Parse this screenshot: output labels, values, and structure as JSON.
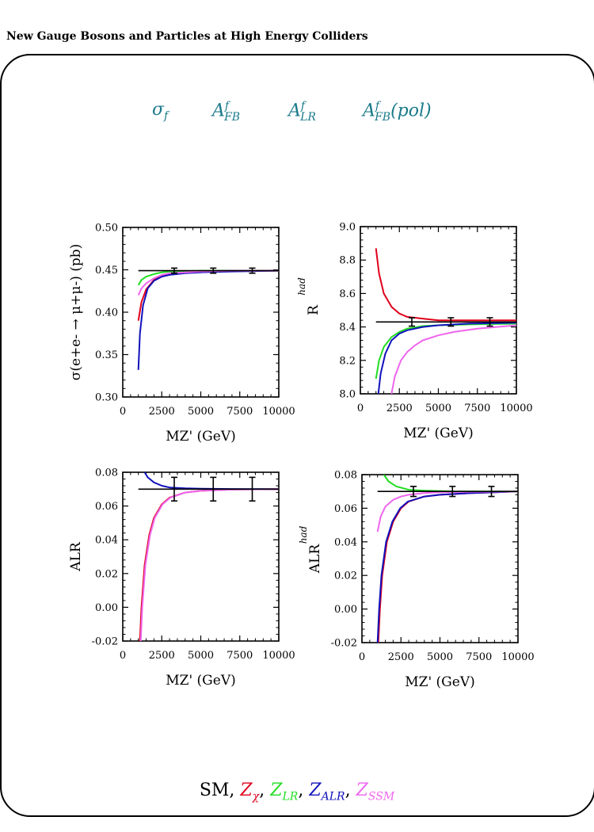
{
  "header": {
    "title": "New Gauge Bosons and Particles at High Energy Colliders"
  },
  "observables": [
    {
      "base": "σ",
      "sub": "f",
      "sup": ""
    },
    {
      "base": "A",
      "sup": "f",
      "sub": "FB"
    },
    {
      "base": "A",
      "sup": "f",
      "sub": "LR"
    },
    {
      "base": "A",
      "sup": "f",
      "sub": "FB",
      "suffix": "(pol)"
    }
  ],
  "legend": {
    "sm": "SM",
    "items": [
      {
        "base": "Z",
        "sub": "χ",
        "color": "#e0001c"
      },
      {
        "base": "Z",
        "sub": "LR",
        "color": "#22dd22"
      },
      {
        "base": "Z",
        "sub": "ALR",
        "color": "#1111bb"
      },
      {
        "base": "Z",
        "sub": "SSM",
        "color": "#ee66ee"
      }
    ]
  },
  "colors": {
    "SM": "#000000",
    "chi": "#e0001c",
    "LR": "#22dd22",
    "ALR": "#1111bb",
    "SSM": "#ee66ee"
  },
  "chart_data": [
    {
      "type": "line",
      "ylabel": "σ(e+e- → μ+μ-)  (pb)",
      "xlabel": "MZ'  (GeV)",
      "xlim": [
        0,
        10000
      ],
      "ylim": [
        0.3,
        0.5
      ],
      "xticks": [
        "0",
        "2500",
        "5000",
        "7500",
        "10000"
      ],
      "yticks": [
        "0.30",
        "0.35",
        "0.40",
        "0.45",
        "0.50"
      ],
      "sm": 0.449,
      "errorbars": [
        {
          "x": 3300,
          "y": 0.449,
          "err": 0.003
        },
        {
          "x": 5800,
          "y": 0.449,
          "err": 0.003
        },
        {
          "x": 8300,
          "y": 0.449,
          "err": 0.003
        }
      ],
      "series": [
        {
          "key": "chi",
          "x": [
            1000,
            1200,
            1500,
            2000,
            2500,
            3000,
            4000,
            5000,
            7000,
            10000
          ],
          "y": [
            0.39,
            0.412,
            0.427,
            0.438,
            0.443,
            0.445,
            0.447,
            0.448,
            0.449,
            0.449
          ]
        },
        {
          "key": "LR",
          "x": [
            1000,
            1200,
            1500,
            2000,
            2500,
            3000,
            4000,
            5000,
            7000,
            10000
          ],
          "y": [
            0.432,
            0.438,
            0.442,
            0.445,
            0.447,
            0.448,
            0.448,
            0.449,
            0.449,
            0.449
          ]
        },
        {
          "key": "ALR",
          "x": [
            1000,
            1100,
            1300,
            1600,
            2000,
            2500,
            3000,
            4000,
            5000,
            7000,
            10000
          ],
          "y": [
            0.332,
            0.375,
            0.408,
            0.428,
            0.437,
            0.442,
            0.444,
            0.446,
            0.447,
            0.448,
            0.449
          ]
        },
        {
          "key": "SSM",
          "x": [
            1000,
            1200,
            1500,
            2000,
            2500,
            3000,
            4000,
            5000,
            7000,
            10000
          ],
          "y": [
            0.42,
            0.428,
            0.434,
            0.44,
            0.444,
            0.446,
            0.447,
            0.448,
            0.449,
            0.449
          ]
        }
      ]
    },
    {
      "type": "line",
      "ylabel": "R",
      "ylabel_sup": "had",
      "xlabel": "MZ'  (GeV)",
      "xlim": [
        0,
        10000
      ],
      "ylim": [
        8.0,
        9.0
      ],
      "xticks": [
        "0",
        "2500",
        "5000",
        "7500",
        "10000"
      ],
      "yticks": [
        "8.0",
        "8.2",
        "8.4",
        "8.6",
        "8.8",
        "9.0"
      ],
      "sm": 8.43,
      "errorbars": [
        {
          "x": 3300,
          "y": 8.43,
          "err": 0.025
        },
        {
          "x": 5800,
          "y": 8.43,
          "err": 0.025
        },
        {
          "x": 8300,
          "y": 8.43,
          "err": 0.025
        }
      ],
      "series": [
        {
          "key": "chi",
          "x": [
            1000,
            1200,
            1500,
            2000,
            2500,
            3000,
            4000,
            5000,
            7000,
            10000
          ],
          "y": [
            8.87,
            8.72,
            8.6,
            8.52,
            8.48,
            8.46,
            8.45,
            8.44,
            8.44,
            8.44
          ]
        },
        {
          "key": "LR",
          "x": [
            1000,
            1200,
            1500,
            2000,
            2500,
            3000,
            4000,
            5000,
            7000,
            10000
          ],
          "y": [
            8.09,
            8.2,
            8.28,
            8.34,
            8.37,
            8.39,
            8.405,
            8.41,
            8.415,
            8.42
          ]
        },
        {
          "key": "ALR",
          "x": [
            1150,
            1300,
            1600,
            2000,
            2500,
            3000,
            4000,
            5000,
            7000,
            10000
          ],
          "y": [
            8.0,
            8.12,
            8.24,
            8.32,
            8.36,
            8.38,
            8.4,
            8.41,
            8.42,
            8.425
          ]
        },
        {
          "key": "SSM",
          "x": [
            2000,
            2200,
            2600,
            3000,
            3500,
            4000,
            5000,
            6000,
            7500,
            10000
          ],
          "y": [
            8.0,
            8.1,
            8.2,
            8.25,
            8.29,
            8.32,
            8.35,
            8.37,
            8.39,
            8.41
          ]
        }
      ]
    },
    {
      "type": "line",
      "ylabel": "ALR",
      "xlabel": "MZ'  (GeV)",
      "xlim": [
        0,
        10000
      ],
      "ylim": [
        -0.02,
        0.08
      ],
      "xticks": [
        "0",
        "2500",
        "5000",
        "7500",
        "10000"
      ],
      "yticks": [
        "-0.02",
        "0.00",
        "0.02",
        "0.04",
        "0.06",
        "0.08"
      ],
      "sm": 0.07,
      "errorbars": [
        {
          "x": 3300,
          "y": 0.07,
          "err": 0.007
        },
        {
          "x": 5800,
          "y": 0.07,
          "err": 0.007
        },
        {
          "x": 8300,
          "y": 0.07,
          "err": 0.007
        }
      ],
      "series": [
        {
          "key": "chi",
          "x": [
            1100,
            1200,
            1400,
            1700,
            2000,
            2500,
            3000,
            4000,
            5000,
            7000,
            10000
          ],
          "y": [
            -0.02,
            0.0,
            0.025,
            0.043,
            0.053,
            0.061,
            0.065,
            0.068,
            0.069,
            0.0698,
            0.07
          ]
        },
        {
          "key": "ALR",
          "x": [
            1400,
            1600,
            2000,
            2500,
            3000,
            4000,
            5000,
            7000,
            10000
          ],
          "y": [
            0.08,
            0.077,
            0.074,
            0.072,
            0.071,
            0.0705,
            0.0703,
            0.0701,
            0.07
          ]
        },
        {
          "key": "SSM",
          "x": [
            1150,
            1250,
            1450,
            1750,
            2050,
            2550,
            3050,
            4000,
            5000,
            7000,
            10000
          ],
          "y": [
            -0.02,
            0.0,
            0.025,
            0.043,
            0.053,
            0.061,
            0.065,
            0.068,
            0.069,
            0.0697,
            0.07
          ]
        }
      ]
    },
    {
      "type": "line",
      "ylabel": "ALR",
      "ylabel_sup": "had",
      "xlabel": "MZ'  (GeV)",
      "xlim": [
        0,
        10000
      ],
      "ylim": [
        -0.02,
        0.08
      ],
      "xticks": [
        "0",
        "2500",
        "5000",
        "7500",
        "10000"
      ],
      "yticks": [
        "-0.02",
        "0.00",
        "0.02",
        "0.04",
        "0.06",
        "0.08"
      ],
      "sm": 0.07,
      "errorbars": [
        {
          "x": 3300,
          "y": 0.07,
          "err": 0.003
        },
        {
          "x": 5800,
          "y": 0.07,
          "err": 0.003
        },
        {
          "x": 8300,
          "y": 0.07,
          "err": 0.003
        }
      ],
      "series": [
        {
          "key": "chi",
          "x": [
            1050,
            1150,
            1300,
            1600,
            2000,
            2500,
            3000,
            4000,
            5000,
            7000,
            10000
          ],
          "y": [
            -0.02,
            0.0,
            0.02,
            0.04,
            0.052,
            0.06,
            0.064,
            0.067,
            0.068,
            0.069,
            0.07
          ]
        },
        {
          "key": "ALR",
          "x": [
            1000,
            1100,
            1250,
            1550,
            1950,
            2450,
            2950,
            4000,
            5000,
            7000,
            10000
          ],
          "y": [
            -0.02,
            0.0,
            0.02,
            0.04,
            0.052,
            0.06,
            0.064,
            0.067,
            0.068,
            0.069,
            0.07
          ]
        },
        {
          "key": "LR",
          "x": [
            1400,
            1700,
            2200,
            3000,
            4000,
            6000,
            10000
          ],
          "y": [
            0.08,
            0.076,
            0.073,
            0.071,
            0.0705,
            0.07,
            0.07
          ]
        },
        {
          "key": "SSM",
          "x": [
            1000,
            1200,
            1500,
            2000,
            2500,
            3000,
            4000,
            5000,
            7000,
            10000
          ],
          "y": [
            0.046,
            0.055,
            0.061,
            0.065,
            0.067,
            0.068,
            0.069,
            0.0695,
            0.0698,
            0.07
          ]
        }
      ]
    }
  ]
}
